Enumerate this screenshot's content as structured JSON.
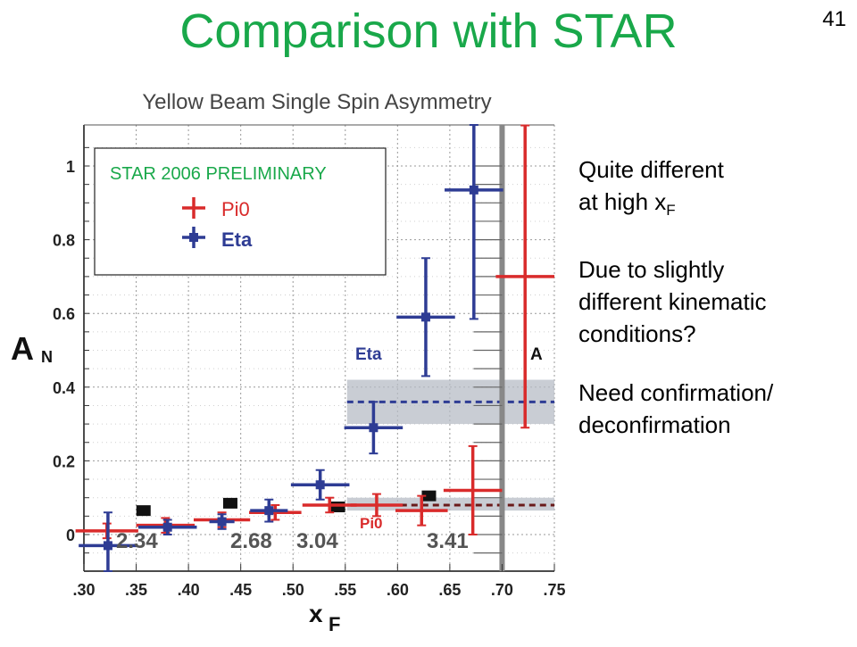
{
  "slide": {
    "title": "Comparison with STAR",
    "number": "41"
  },
  "notes": {
    "p1_line1": "Quite different",
    "p1_line2_pre": "at high x",
    "p1_line2_sub": "F",
    "p2_line1": "Due to slightly",
    "p2_line2": "different kinematic",
    "p2_line3": "conditions?",
    "p3_line1": "Need confirmation/",
    "p3_line2": "deconfirmation"
  },
  "chart_data": {
    "type": "scatter",
    "title": "Yellow Beam Single Spin Asymmetry",
    "xlabel": "x",
    "xlabel_sub": "F",
    "ylabel": "A",
    "ylabel_sub": "N",
    "xlim": [
      0.3,
      0.75
    ],
    "ylim": [
      -0.1,
      1.1
    ],
    "xticks": [
      ".30",
      ".35",
      ".40",
      ".45",
      ".50",
      ".55",
      ".60",
      ".65",
      ".70",
      ".75"
    ],
    "yticks": [
      "0",
      "0.2",
      "0.4",
      "0.6",
      "0.8",
      "1"
    ],
    "grid": true,
    "legend": {
      "title": "STAR 2006 PRELIMINARY",
      "placement": "top-left",
      "entries": [
        "Pi0",
        "Eta"
      ]
    },
    "colors": {
      "pi0": "#d92b2b",
      "eta": "#2e3c94",
      "legend_title": "#19a84a",
      "band": "#b7bcc6",
      "black_points": "#111111"
    },
    "series": [
      {
        "name": "Pi0",
        "points": [
          {
            "x": 0.322,
            "y": 0.01,
            "xerr": 0.03,
            "yerr": 0.02
          },
          {
            "x": 0.378,
            "y": 0.025,
            "xerr": 0.028,
            "yerr": 0.02
          },
          {
            "x": 0.432,
            "y": 0.04,
            "xerr": 0.027,
            "yerr": 0.02
          },
          {
            "x": 0.483,
            "y": 0.06,
            "xerr": 0.025,
            "yerr": 0.02
          },
          {
            "x": 0.535,
            "y": 0.08,
            "xerr": 0.026,
            "yerr": 0.02
          },
          {
            "x": 0.58,
            "y": 0.08,
            "xerr": 0.025,
            "yerr": 0.03
          },
          {
            "x": 0.623,
            "y": 0.065,
            "xerr": 0.025,
            "yerr": 0.04
          },
          {
            "x": 0.672,
            "y": 0.12,
            "xerr": 0.028,
            "yerr": 0.12
          },
          {
            "x": 0.722,
            "y": 0.7,
            "xerr": 0.028,
            "yerr": 0.41
          }
        ]
      },
      {
        "name": "Eta",
        "points": [
          {
            "x": 0.323,
            "y": -0.03,
            "xerr": 0.028,
            "yerr": 0.09
          },
          {
            "x": 0.38,
            "y": 0.02,
            "xerr": 0.028,
            "yerr": 0.02
          },
          {
            "x": 0.432,
            "y": 0.035,
            "xerr": 0.012,
            "yerr": 0.02
          },
          {
            "x": 0.477,
            "y": 0.065,
            "xerr": 0.018,
            "yerr": 0.03
          },
          {
            "x": 0.526,
            "y": 0.135,
            "xerr": 0.028,
            "yerr": 0.04
          },
          {
            "x": 0.577,
            "y": 0.29,
            "xerr": 0.028,
            "yerr": 0.07
          },
          {
            "x": 0.627,
            "y": 0.59,
            "xerr": 0.028,
            "yerr": 0.16
          },
          {
            "x": 0.673,
            "y": 0.935,
            "xerr": 0.028,
            "yerr": 0.35
          }
        ]
      },
      {
        "name": "",
        "points": [
          {
            "x": 0.357,
            "y": 0.065
          },
          {
            "x": 0.44,
            "y": 0.085
          },
          {
            "x": 0.543,
            "y": 0.075
          },
          {
            "x": 0.63,
            "y": 0.105
          }
        ]
      }
    ],
    "bands": [
      {
        "label": "Eta",
        "x_from": 0.55,
        "x_to": 0.75,
        "y_center": 0.36,
        "y_low": 0.3,
        "y_high": 0.42
      },
      {
        "label": "Pi0",
        "x_from": 0.55,
        "x_to": 0.75,
        "y_center": 0.08,
        "y_low": 0.065,
        "y_high": 0.1
      }
    ],
    "annotations": [
      "Eta",
      "Pi0",
      "A",
      "2.34",
      "2.68",
      "3.04",
      "3.41"
    ]
  }
}
